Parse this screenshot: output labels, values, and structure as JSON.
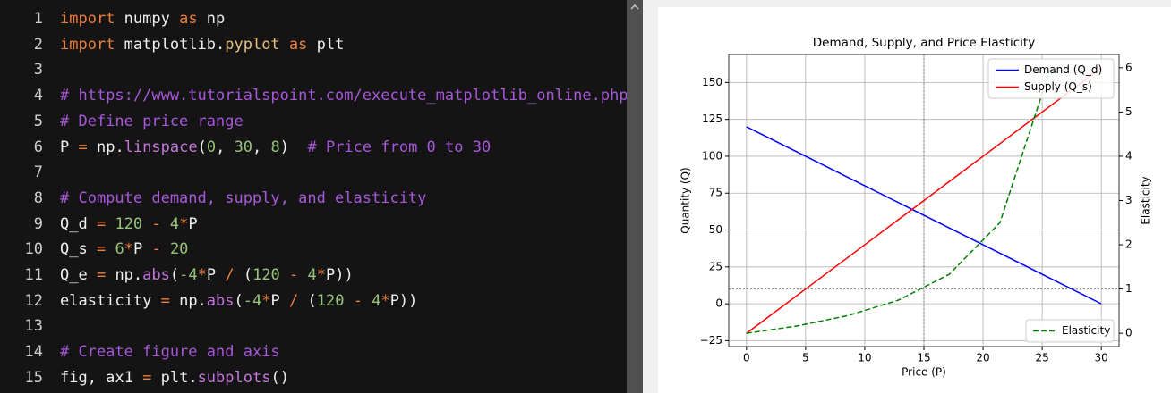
{
  "editor": {
    "lines": [
      {
        "number": 1,
        "tokens": [
          [
            "import",
            "#ef7f3a"
          ],
          [
            " numpy ",
            "#f0f0f0"
          ],
          [
            "as",
            "#ef7f3a"
          ],
          [
            " np",
            "#f0f0f0"
          ]
        ]
      },
      {
        "number": 2,
        "tokens": [
          [
            "import",
            "#ef7f3a"
          ],
          [
            " matplotlib.",
            "#f0f0f0"
          ],
          [
            "pyplot",
            "#e5c07b"
          ],
          [
            " ",
            "#f0f0f0"
          ],
          [
            "as",
            "#ef7f3a"
          ],
          [
            " plt",
            "#f0f0f0"
          ]
        ]
      },
      {
        "number": 3,
        "tokens": []
      },
      {
        "number": 4,
        "tokens": [
          [
            "# https://www.tutorialspoint.com/execute_matplotlib_online.php",
            "#a957db"
          ]
        ]
      },
      {
        "number": 5,
        "tokens": [
          [
            "# Define price range",
            "#a957db"
          ]
        ]
      },
      {
        "number": 6,
        "tokens": [
          [
            "P ",
            "#f0f0f0"
          ],
          [
            "=",
            "#ef7f3a"
          ],
          [
            " np.",
            "#f0f0f0"
          ],
          [
            "linspace",
            "#c678dd"
          ],
          [
            "(",
            "#f0f0f0"
          ],
          [
            "0",
            "#98c379"
          ],
          [
            ", ",
            "#f0f0f0"
          ],
          [
            "30",
            "#98c379"
          ],
          [
            ", ",
            "#f0f0f0"
          ],
          [
            "8",
            "#98c379"
          ],
          [
            ")  ",
            "#f0f0f0"
          ],
          [
            "# Price from 0 to 30",
            "#a957db"
          ]
        ]
      },
      {
        "number": 7,
        "tokens": []
      },
      {
        "number": 8,
        "tokens": [
          [
            "# Compute demand, supply, and elasticity",
            "#a957db"
          ]
        ]
      },
      {
        "number": 9,
        "tokens": [
          [
            "Q_d ",
            "#f0f0f0"
          ],
          [
            "=",
            "#ef7f3a"
          ],
          [
            " ",
            "#f0f0f0"
          ],
          [
            "120",
            "#98c379"
          ],
          [
            " ",
            "#f0f0f0"
          ],
          [
            "-",
            "#ef7f3a"
          ],
          [
            " ",
            "#f0f0f0"
          ],
          [
            "4",
            "#98c379"
          ],
          [
            "*",
            "#ef7f3a"
          ],
          [
            "P",
            "#f0f0f0"
          ]
        ]
      },
      {
        "number": 10,
        "tokens": [
          [
            "Q_s ",
            "#f0f0f0"
          ],
          [
            "=",
            "#ef7f3a"
          ],
          [
            " ",
            "#f0f0f0"
          ],
          [
            "6",
            "#98c379"
          ],
          [
            "*",
            "#ef7f3a"
          ],
          [
            "P ",
            "#f0f0f0"
          ],
          [
            "-",
            "#ef7f3a"
          ],
          [
            " ",
            "#f0f0f0"
          ],
          [
            "20",
            "#98c379"
          ]
        ]
      },
      {
        "number": 11,
        "tokens": [
          [
            "Q_e ",
            "#f0f0f0"
          ],
          [
            "=",
            "#ef7f3a"
          ],
          [
            " np.",
            "#f0f0f0"
          ],
          [
            "abs",
            "#c678dd"
          ],
          [
            "(",
            "#f0f0f0"
          ],
          [
            "-4",
            "#98c379"
          ],
          [
            "*",
            "#ef7f3a"
          ],
          [
            "P ",
            "#f0f0f0"
          ],
          [
            "/",
            "#ef7f3a"
          ],
          [
            " (",
            "#f0f0f0"
          ],
          [
            "120",
            "#98c379"
          ],
          [
            " ",
            "#f0f0f0"
          ],
          [
            "-",
            "#ef7f3a"
          ],
          [
            " ",
            "#f0f0f0"
          ],
          [
            "4",
            "#98c379"
          ],
          [
            "*",
            "#ef7f3a"
          ],
          [
            "P))",
            "#f0f0f0"
          ]
        ]
      },
      {
        "number": 12,
        "tokens": [
          [
            "elasticity ",
            "#f0f0f0"
          ],
          [
            "=",
            "#ef7f3a"
          ],
          [
            " np.",
            "#f0f0f0"
          ],
          [
            "abs",
            "#c678dd"
          ],
          [
            "(",
            "#f0f0f0"
          ],
          [
            "-4",
            "#98c379"
          ],
          [
            "*",
            "#ef7f3a"
          ],
          [
            "P ",
            "#f0f0f0"
          ],
          [
            "/",
            "#ef7f3a"
          ],
          [
            " (",
            "#f0f0f0"
          ],
          [
            "120",
            "#98c379"
          ],
          [
            " ",
            "#f0f0f0"
          ],
          [
            "-",
            "#ef7f3a"
          ],
          [
            " ",
            "#f0f0f0"
          ],
          [
            "4",
            "#98c379"
          ],
          [
            "*",
            "#ef7f3a"
          ],
          [
            "P))",
            "#f0f0f0"
          ]
        ]
      },
      {
        "number": 13,
        "tokens": []
      },
      {
        "number": 14,
        "tokens": [
          [
            "# Create figure and axis",
            "#a957db"
          ]
        ]
      },
      {
        "number": 15,
        "tokens": [
          [
            "fig, ax1 ",
            "#f0f0f0"
          ],
          [
            "=",
            "#ef7f3a"
          ],
          [
            " plt.",
            "#f0f0f0"
          ],
          [
            "subplots",
            "#c678dd"
          ],
          [
            "()",
            "#f0f0f0"
          ]
        ]
      }
    ]
  },
  "chart_data": {
    "type": "line",
    "title": "Demand, Supply, and Price Elasticity",
    "xlabel": "Price (P)",
    "ylabel": "Quantity (Q)",
    "y2label": "Elasticity",
    "x": [
      0,
      4.2857,
      8.5714,
      12.8571,
      17.1429,
      21.4286,
      25.7143,
      30
    ],
    "series": [
      {
        "name": "Demand (Q_d)",
        "color": "#0000ff",
        "dash": "solid",
        "axis": "y",
        "values": [
          120,
          102.86,
          85.71,
          68.57,
          51.43,
          34.29,
          17.14,
          0
        ]
      },
      {
        "name": "Supply (Q_s)",
        "color": "#ff0000",
        "dash": "solid",
        "axis": "y",
        "values": [
          -20,
          5.71,
          31.43,
          57.14,
          82.86,
          108.57,
          134.29,
          160
        ]
      },
      {
        "name": "Elasticity",
        "color": "#008000",
        "dash": "dashed",
        "axis": "y2",
        "values": [
          0,
          0.1667,
          0.4,
          0.75,
          1.3333,
          2.5,
          6,
          null
        ]
      }
    ],
    "xlim": [
      -1.5,
      31.5
    ],
    "xticks": [
      0,
      5,
      10,
      15,
      20,
      25,
      30
    ],
    "ylim": [
      -29,
      169
    ],
    "yticks": [
      {
        "value": -25,
        "label": "−25"
      },
      0,
      25,
      50,
      75,
      100,
      125,
      150
    ],
    "y2lim": [
      -0.3,
      6.3
    ],
    "y2ticks": [
      0,
      1,
      2,
      3,
      4,
      5,
      6
    ],
    "grid": true,
    "legend": "upper right",
    "legend2": "lower right",
    "vline_x": 15,
    "hline_y2": 1,
    "reference_color": "#808080"
  }
}
